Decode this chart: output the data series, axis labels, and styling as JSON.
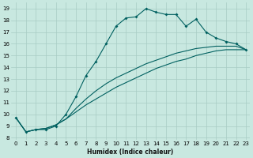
{
  "xlabel": "Humidex (Indice chaleur)",
  "bg_color": "#c8e8e0",
  "grid_color": "#a8ccc4",
  "line_color": "#006060",
  "xlim_min": -0.5,
  "xlim_max": 23.4,
  "ylim_min": 7.8,
  "ylim_max": 19.5,
  "xticks": [
    0,
    1,
    2,
    3,
    4,
    5,
    6,
    7,
    8,
    9,
    10,
    11,
    12,
    13,
    14,
    15,
    16,
    17,
    18,
    19,
    20,
    21,
    22,
    23
  ],
  "yticks": [
    8,
    9,
    10,
    11,
    12,
    13,
    14,
    15,
    16,
    17,
    18,
    19
  ],
  "curve1_x": [
    0,
    1,
    2,
    3,
    4,
    5,
    6,
    7,
    8,
    9,
    10,
    11,
    12,
    13,
    14,
    15,
    16,
    17,
    18,
    19,
    20,
    21,
    22,
    23
  ],
  "curve1_y": [
    9.7,
    8.5,
    8.7,
    8.7,
    9.0,
    10.0,
    11.5,
    13.3,
    14.5,
    16.0,
    17.5,
    18.2,
    18.3,
    19.0,
    18.7,
    18.5,
    18.5,
    17.5,
    18.1,
    17.0,
    16.5,
    16.2,
    16.0,
    15.5
  ],
  "line2_x": [
    0,
    1,
    2,
    3,
    4,
    5,
    6,
    7,
    8,
    9,
    10,
    11,
    12,
    13,
    14,
    15,
    16,
    17,
    18,
    19,
    20,
    21,
    22,
    23
  ],
  "line2_y": [
    9.7,
    8.5,
    8.7,
    8.8,
    9.1,
    9.6,
    10.2,
    10.8,
    11.3,
    11.8,
    12.3,
    12.7,
    13.1,
    13.5,
    13.9,
    14.2,
    14.5,
    14.7,
    15.0,
    15.2,
    15.4,
    15.5,
    15.5,
    15.5
  ],
  "line3_x": [
    0,
    1,
    2,
    3,
    4,
    5,
    6,
    7,
    8,
    9,
    10,
    11,
    12,
    13,
    14,
    15,
    16,
    17,
    18,
    19,
    20,
    21,
    22,
    23
  ],
  "line3_y": [
    9.7,
    8.5,
    8.7,
    8.8,
    9.1,
    9.6,
    10.5,
    11.3,
    12.0,
    12.6,
    13.1,
    13.5,
    13.9,
    14.3,
    14.6,
    14.9,
    15.2,
    15.4,
    15.6,
    15.7,
    15.8,
    15.8,
    15.8,
    15.5
  ]
}
